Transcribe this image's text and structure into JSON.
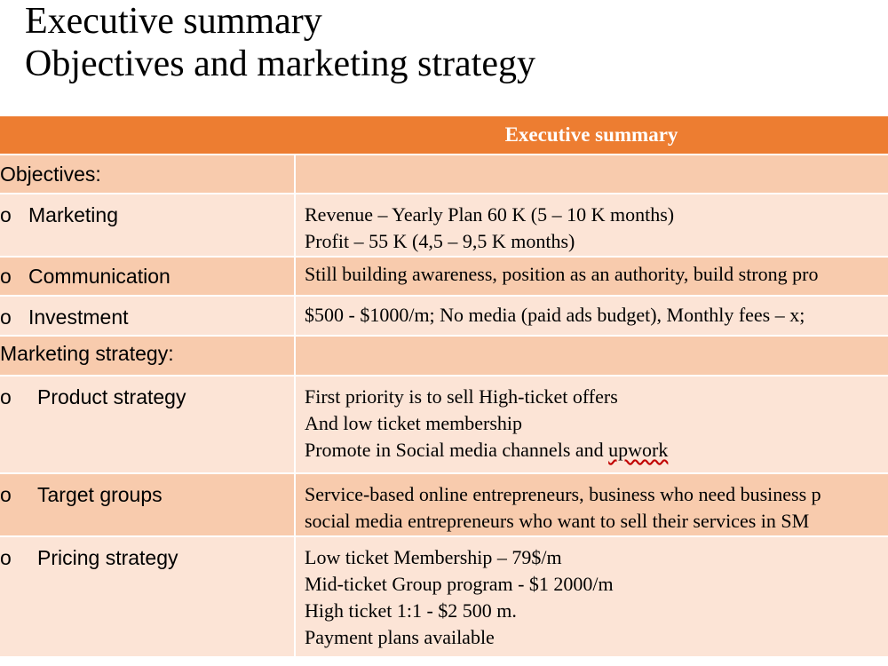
{
  "title": {
    "line1": "Executive summary",
    "line2": "Objectives and marketing strategy"
  },
  "table": {
    "header": "Executive summary",
    "bullet": "o",
    "rows": [
      {
        "label": "Objectives:",
        "lines": []
      },
      {
        "label": "Marketing",
        "lines": [
          "Revenue – Yearly Plan 60 K (5 – 10 K months)",
          "Profit – 55 K (4,5 – 9,5 K months)"
        ]
      },
      {
        "label": "Communication",
        "lines": [
          "Still building awareness, position as an authority, build strong pro"
        ]
      },
      {
        "label": "Investment",
        "lines": [
          "$500 - $1000/m; No media (paid ads budget), Monthly fees – x;"
        ]
      },
      {
        "label": "Marketing strategy:",
        "lines": []
      },
      {
        "label": "Product strategy",
        "lines": [
          "First priority is to sell High-ticket offers",
          "And low ticket membership",
          "Promote in Social media channels and "
        ],
        "underlined": "upwork"
      },
      {
        "label": "Target groups",
        "lines": [
          "Service-based online entrepreneurs, business who need business p",
          "social media entrepreneurs who want to sell their services in SM"
        ]
      },
      {
        "label": "Pricing strategy",
        "lines": [
          "Low ticket Membership – 79$/m",
          "Mid-ticket Group program - $1 2000/m",
          "High ticket 1:1 - $2 500 m.",
          "Payment plans available"
        ]
      }
    ]
  }
}
